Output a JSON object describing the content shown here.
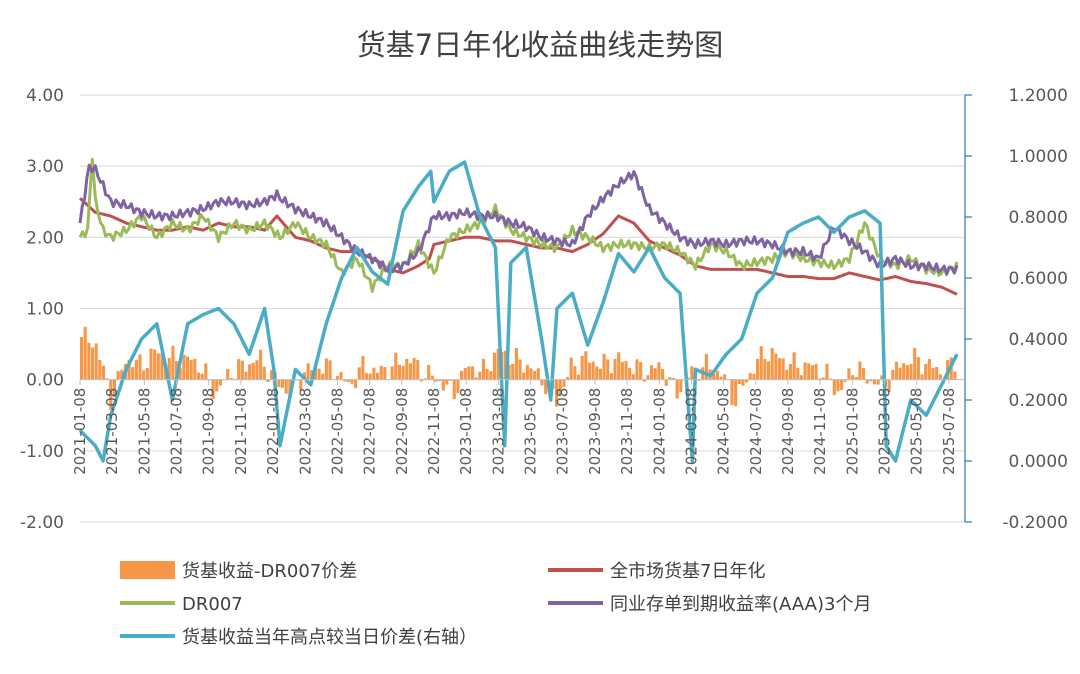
{
  "chart_data": {
    "type": "bar+line",
    "title": "货基7日年化收益曲线走势图",
    "colors": {
      "spread_bar": "#F79646",
      "market_7d": "#C0504D",
      "dr007": "#9BBB59",
      "ncd_aaa_3m": "#8064A2",
      "high_gap": "#4BACC6",
      "right_axis": "#2E75B6"
    },
    "left_axis": {
      "ylim": [
        -2.0,
        4.0
      ],
      "ticks": [
        "-2.00",
        "-1.00",
        "0.00",
        "1.00",
        "2.00",
        "3.00",
        "4.00"
      ]
    },
    "right_axis": {
      "ylim": [
        -0.2,
        1.2
      ],
      "ticks": [
        "-0.2000",
        "0.0000",
        "0.2000",
        "0.4000",
        "0.6000",
        "0.8000",
        "1.0000",
        "1.2000"
      ]
    },
    "x_ticks": [
      "2021-01-08",
      "2021-03-08",
      "2021-05-08",
      "2021-07-08",
      "2021-09-08",
      "2021-11-08",
      "2022-01-08",
      "2022-03-08",
      "2022-05-08",
      "2022-07-08",
      "2022-09-08",
      "2022-11-08",
      "2023-01-08",
      "2023-03-08",
      "2023-05-08",
      "2023-07-08",
      "2023-09-08",
      "2023-11-08",
      "2024-01-08",
      "2024-03-08",
      "2024-05-08",
      "2024-07-08",
      "2024-09-08",
      "2024-11-08",
      "2025-01-08",
      "2025-03-08",
      "2025-05-08",
      "2025-07-08"
    ],
    "legend": [
      {
        "key": "spread",
        "label": "货基收益-DR007价差",
        "type": "bar"
      },
      {
        "key": "market",
        "label": "全市场货基7日年化",
        "type": "line"
      },
      {
        "key": "dr007",
        "label": "DR007",
        "type": "line"
      },
      {
        "key": "ncd",
        "label": "同业存单到期收益率(AAA)3个月",
        "type": "line"
      },
      {
        "key": "gap",
        "label": "货基收益当年高点较当日价差(右轴）",
        "type": "line"
      }
    ],
    "series": {
      "market_7d": {
        "name": "全市场货基7日年化",
        "points": [
          [
            0,
            2.55
          ],
          [
            1,
            2.35
          ],
          [
            2,
            2.3
          ],
          [
            3,
            2.2
          ],
          [
            4,
            2.15
          ],
          [
            5,
            2.1
          ],
          [
            6,
            2.1
          ],
          [
            7,
            2.15
          ],
          [
            8,
            2.1
          ],
          [
            9,
            2.2
          ],
          [
            10,
            2.15
          ],
          [
            11,
            2.15
          ],
          [
            12,
            2.1
          ],
          [
            12.8,
            2.3
          ],
          [
            13,
            2.25
          ],
          [
            14,
            2.0
          ],
          [
            15,
            1.95
          ],
          [
            16,
            1.85
          ],
          [
            17,
            1.8
          ],
          [
            18,
            1.8
          ],
          [
            19,
            1.7
          ],
          [
            19.5,
            1.65
          ],
          [
            20,
            1.55
          ],
          [
            21,
            1.5
          ],
          [
            22,
            1.6
          ],
          [
            22.7,
            1.7
          ],
          [
            23,
            1.9
          ],
          [
            24,
            1.95
          ],
          [
            25,
            2.0
          ],
          [
            26,
            2.0
          ],
          [
            27,
            1.95
          ],
          [
            28,
            1.95
          ],
          [
            29,
            1.9
          ],
          [
            30,
            1.85
          ],
          [
            31,
            1.85
          ],
          [
            32,
            1.8
          ],
          [
            33,
            1.9
          ],
          [
            34,
            2.05
          ],
          [
            35,
            2.3
          ],
          [
            36,
            2.2
          ],
          [
            37,
            1.95
          ],
          [
            38,
            1.85
          ],
          [
            39,
            1.75
          ],
          [
            40,
            1.6
          ],
          [
            41,
            1.55
          ],
          [
            42,
            1.55
          ],
          [
            43,
            1.55
          ],
          [
            44,
            1.55
          ],
          [
            45,
            1.5
          ],
          [
            46,
            1.45
          ],
          [
            47,
            1.45
          ],
          [
            48,
            1.42
          ],
          [
            49,
            1.42
          ],
          [
            50,
            1.5
          ],
          [
            51,
            1.45
          ],
          [
            52,
            1.4
          ],
          [
            53,
            1.45
          ],
          [
            54,
            1.38
          ],
          [
            55,
            1.35
          ],
          [
            56,
            1.3
          ],
          [
            57,
            1.2
          ]
        ]
      },
      "dr007": {
        "name": "DR007",
        "points": [
          [
            0,
            2.0
          ],
          [
            0.5,
            2.1
          ],
          [
            0.8,
            3.15
          ],
          [
            1,
            2.5
          ],
          [
            1.5,
            2.1
          ],
          [
            2,
            2.0
          ],
          [
            3,
            2.1
          ],
          [
            4,
            2.3
          ],
          [
            5,
            2.0
          ],
          [
            6,
            2.2
          ],
          [
            7,
            2.1
          ],
          [
            8,
            2.3
          ],
          [
            9,
            2.0
          ],
          [
            10,
            2.2
          ],
          [
            11,
            2.1
          ],
          [
            12,
            2.2
          ],
          [
            13,
            2.0
          ],
          [
            14,
            2.2
          ],
          [
            15,
            2.0
          ],
          [
            16,
            1.9
          ],
          [
            17,
            1.5
          ],
          [
            18,
            1.7
          ],
          [
            19,
            1.3
          ],
          [
            20,
            1.6
          ],
          [
            21,
            1.6
          ],
          [
            22,
            1.9
          ],
          [
            23,
            1.5
          ],
          [
            24,
            2.0
          ],
          [
            25,
            2.1
          ],
          [
            26,
            2.2
          ],
          [
            27,
            2.4
          ],
          [
            28,
            2.1
          ],
          [
            29,
            2.0
          ],
          [
            30,
            1.9
          ],
          [
            31,
            1.85
          ],
          [
            32,
            2.1
          ],
          [
            33,
            2.0
          ],
          [
            34,
            1.85
          ],
          [
            35,
            1.9
          ],
          [
            36,
            1.9
          ],
          [
            37,
            1.85
          ],
          [
            38,
            1.9
          ],
          [
            39,
            1.8
          ],
          [
            40,
            1.6
          ],
          [
            41,
            1.9
          ],
          [
            42,
            1.8
          ],
          [
            43,
            1.6
          ],
          [
            44,
            1.65
          ],
          [
            45,
            1.7
          ],
          [
            46,
            1.8
          ],
          [
            47,
            1.7
          ],
          [
            48,
            1.65
          ],
          [
            49,
            1.6
          ],
          [
            50,
            1.7
          ],
          [
            51,
            2.2
          ],
          [
            52,
            1.7
          ],
          [
            53,
            1.6
          ],
          [
            54,
            1.7
          ],
          [
            55,
            1.55
          ],
          [
            56,
            1.5
          ],
          [
            57,
            1.6
          ]
        ]
      },
      "ncd_aaa_3m": {
        "name": "同业存单到期收益率(AAA)3个月",
        "points": [
          [
            0,
            2.2
          ],
          [
            0.6,
            3.0
          ],
          [
            1,
            2.95
          ],
          [
            2,
            2.5
          ],
          [
            3,
            2.45
          ],
          [
            4,
            2.35
          ],
          [
            5,
            2.3
          ],
          [
            6,
            2.3
          ],
          [
            7,
            2.35
          ],
          [
            8,
            2.4
          ],
          [
            9,
            2.5
          ],
          [
            10,
            2.5
          ],
          [
            11,
            2.45
          ],
          [
            12,
            2.5
          ],
          [
            12.8,
            2.6
          ],
          [
            13,
            2.55
          ],
          [
            14,
            2.4
          ],
          [
            15,
            2.3
          ],
          [
            16,
            2.2
          ],
          [
            17,
            2.0
          ],
          [
            18,
            1.8
          ],
          [
            19,
            1.7
          ],
          [
            20,
            1.55
          ],
          [
            21,
            1.6
          ],
          [
            22,
            1.8
          ],
          [
            23,
            2.3
          ],
          [
            24,
            2.3
          ],
          [
            25,
            2.35
          ],
          [
            26,
            2.3
          ],
          [
            27,
            2.3
          ],
          [
            28,
            2.2
          ],
          [
            29,
            2.15
          ],
          [
            30,
            2.0
          ],
          [
            31,
            1.95
          ],
          [
            32,
            1.9
          ],
          [
            33,
            2.3
          ],
          [
            34,
            2.55
          ],
          [
            35,
            2.75
          ],
          [
            36,
            2.9
          ],
          [
            37,
            2.4
          ],
          [
            38,
            2.2
          ],
          [
            39,
            2.0
          ],
          [
            40,
            1.9
          ],
          [
            41,
            1.95
          ],
          [
            42,
            1.9
          ],
          [
            43,
            1.95
          ],
          [
            44,
            1.95
          ],
          [
            45,
            1.9
          ],
          [
            46,
            1.8
          ],
          [
            47,
            1.8
          ],
          [
            48,
            1.7
          ],
          [
            49,
            2.15
          ],
          [
            50,
            1.95
          ],
          [
            51,
            1.8
          ],
          [
            52,
            1.6
          ],
          [
            53,
            1.7
          ],
          [
            54,
            1.6
          ],
          [
            55,
            1.6
          ],
          [
            56,
            1.55
          ],
          [
            57,
            1.55
          ]
        ]
      },
      "high_gap": {
        "name": "货基收益当年高点较当日价差(右轴）",
        "axis": "right",
        "points": [
          [
            0,
            0.1
          ],
          [
            1,
            0.05
          ],
          [
            1.5,
            0.0
          ],
          [
            2,
            0.15
          ],
          [
            3,
            0.3
          ],
          [
            4,
            0.4
          ],
          [
            5,
            0.45
          ],
          [
            6,
            0.2
          ],
          [
            7,
            0.45
          ],
          [
            8,
            0.48
          ],
          [
            9,
            0.5
          ],
          [
            10,
            0.45
          ],
          [
            11,
            0.35
          ],
          [
            12,
            0.5
          ],
          [
            12.6,
            0.3
          ],
          [
            13,
            0.05
          ],
          [
            14,
            0.3
          ],
          [
            15,
            0.25
          ],
          [
            16,
            0.45
          ],
          [
            17,
            0.6
          ],
          [
            18,
            0.7
          ],
          [
            19,
            0.62
          ],
          [
            20,
            0.58
          ],
          [
            21,
            0.82
          ],
          [
            22,
            0.9
          ],
          [
            22.8,
            0.95
          ],
          [
            23,
            0.85
          ],
          [
            24,
            0.95
          ],
          [
            25,
            0.98
          ],
          [
            26,
            0.8
          ],
          [
            27,
            0.7
          ],
          [
            27.6,
            0.05
          ],
          [
            28,
            0.65
          ],
          [
            29,
            0.7
          ],
          [
            30,
            0.4
          ],
          [
            30.6,
            0.2
          ],
          [
            31,
            0.5
          ],
          [
            32,
            0.55
          ],
          [
            33,
            0.38
          ],
          [
            34,
            0.52
          ],
          [
            35,
            0.68
          ],
          [
            36,
            0.62
          ],
          [
            37,
            0.7
          ],
          [
            38,
            0.6
          ],
          [
            39,
            0.55
          ],
          [
            39.8,
            0.0
          ],
          [
            40,
            0.3
          ],
          [
            41,
            0.28
          ],
          [
            42,
            0.35
          ],
          [
            43,
            0.4
          ],
          [
            44,
            0.55
          ],
          [
            45,
            0.6
          ],
          [
            46,
            0.75
          ],
          [
            47,
            0.78
          ],
          [
            48,
            0.8
          ],
          [
            49,
            0.75
          ],
          [
            50,
            0.8
          ],
          [
            51,
            0.82
          ],
          [
            52,
            0.78
          ],
          [
            52.4,
            0.05
          ],
          [
            53,
            0.0
          ],
          [
            54,
            0.2
          ],
          [
            55,
            0.15
          ],
          [
            56,
            0.25
          ],
          [
            57,
            0.35
          ]
        ]
      },
      "spread": {
        "name": "货基收益-DR007价差",
        "bar_count": 240,
        "values": [
          0.6,
          0.5,
          -0.3,
          0.3,
          0.2,
          0.4,
          0.3,
          0.3,
          0.2,
          -0.2,
          0.1,
          0.2,
          0.3,
          0.0,
          -0.2,
          0.1,
          0.2,
          0.15,
          -0.1,
          0.2,
          0.1,
          0.2,
          0.3,
          0.1,
          0.0,
          -0.2,
          0.2,
          0.1,
          0.4,
          0.3,
          0.2,
          0.0,
          -0.3,
          0.2,
          0.3,
          0.2,
          0.3,
          0.2,
          0.1,
          0.2,
          -0.2,
          0.1,
          0.2,
          0.1,
          -0.3,
          0.1,
          0.4,
          0.3,
          0.2,
          0.2,
          0.1,
          -0.2,
          0.2,
          0.0,
          -0.1,
          0.2,
          0.3,
          0.2,
          0.1,
          0.3
        ]
      }
    }
  }
}
